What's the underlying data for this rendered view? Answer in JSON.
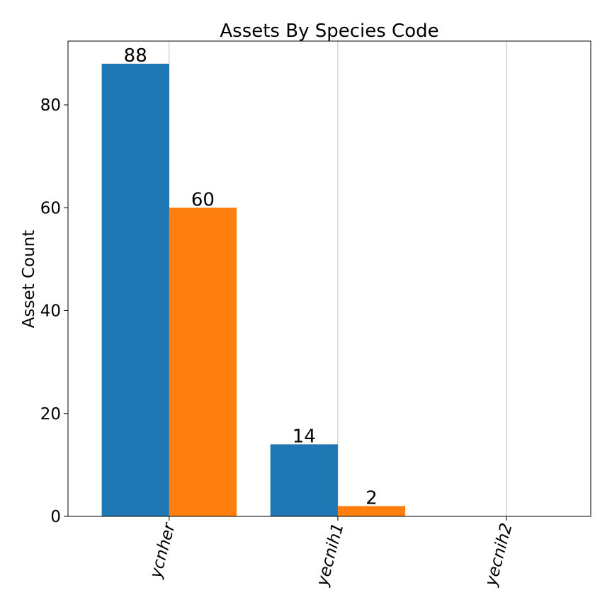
{
  "chart_data": {
    "type": "bar",
    "title": "Assets By Species Code",
    "xlabel": "",
    "ylabel": "Asset Count",
    "categories": [
      "ycnher",
      "yecnih1",
      "yecnih2"
    ],
    "series": [
      {
        "color": "#1f77b4",
        "values": [
          88,
          14,
          null
        ]
      },
      {
        "color": "#ff7f0e",
        "values": [
          60,
          2,
          null
        ]
      }
    ],
    "bar_labels": [
      [
        "88",
        "14",
        ""
      ],
      [
        "60",
        "2",
        ""
      ]
    ],
    "yticks": [
      0,
      20,
      40,
      60,
      80
    ],
    "ylim": [
      0,
      92.4
    ],
    "grid": "x-axis vertical lines",
    "xtick_rotation": "75 degrees",
    "legend": "none"
  }
}
